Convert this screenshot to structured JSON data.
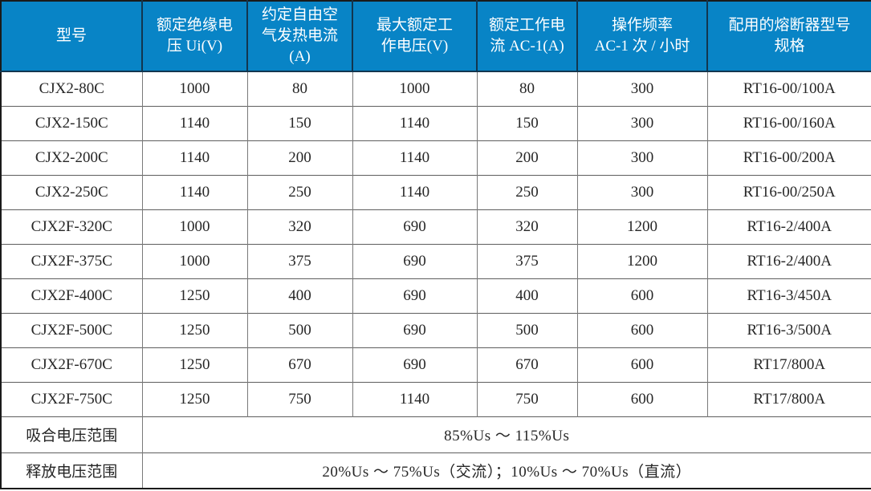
{
  "table": {
    "headers": [
      "型号",
      "额定绝缘电\n压 Ui(V)",
      "约定自由空\n气发热电流\n(A)",
      "最大额定工\n作电压(V)",
      "额定工作电\n流 AC-1(A)",
      "操作频率\nAC-1 次 / 小时",
      "配用的熔断器型号\n规格"
    ],
    "rows": [
      [
        "CJX2-80C",
        "1000",
        "80",
        "1000",
        "80",
        "300",
        "RT16-00/100A"
      ],
      [
        "CJX2-150C",
        "1140",
        "150",
        "1140",
        "150",
        "300",
        "RT16-00/160A"
      ],
      [
        "CJX2-200C",
        "1140",
        "200",
        "1140",
        "200",
        "300",
        "RT16-00/200A"
      ],
      [
        "CJX2-250C",
        "1140",
        "250",
        "1140",
        "250",
        "300",
        "RT16-00/250A"
      ],
      [
        "CJX2F-320C",
        "1000",
        "320",
        "690",
        "320",
        "1200",
        "RT16-2/400A"
      ],
      [
        "CJX2F-375C",
        "1000",
        "375",
        "690",
        "375",
        "1200",
        "RT16-2/400A"
      ],
      [
        "CJX2F-400C",
        "1250",
        "400",
        "690",
        "400",
        "600",
        "RT16-3/450A"
      ],
      [
        "CJX2F-500C",
        "1250",
        "500",
        "690",
        "500",
        "600",
        "RT16-3/500A"
      ],
      [
        "CJX2F-670C",
        "1250",
        "670",
        "690",
        "670",
        "600",
        "RT17/800A"
      ],
      [
        "CJX2F-750C",
        "1250",
        "750",
        "1140",
        "750",
        "600",
        "RT17/800A"
      ]
    ],
    "footer_rows": [
      {
        "label": "吸合电压范围",
        "value": "85%Us ～ 115%Us"
      },
      {
        "label": "释放电压范围",
        "value": "20%Us ～ 75%Us（交流）；10%Us ～ 70%Us（直流）"
      }
    ]
  },
  "colors": {
    "header_bg": "#0884C6",
    "header_text": "#FFFFFF",
    "header_divider": "#12364F",
    "outer_border": "#1A1A1A",
    "grid_vertical": "#7A7A7A",
    "grid_horizontal": "#5E5E5E",
    "body_text": "#262626"
  }
}
